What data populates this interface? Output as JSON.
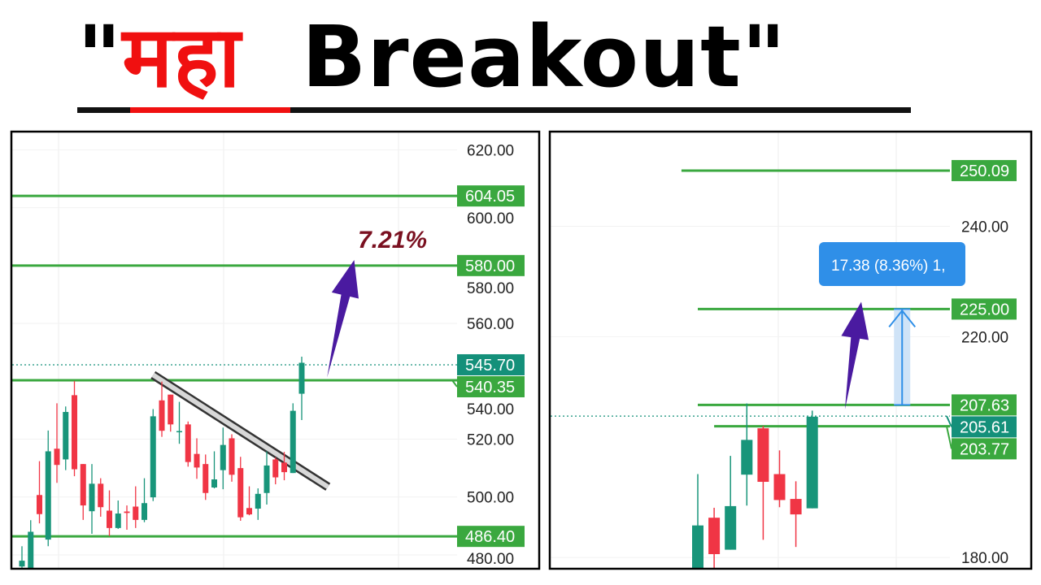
{
  "title": {
    "quote_open": "\"",
    "hindi": "महा",
    "english": "Breakout",
    "quote_close": "\""
  },
  "colors": {
    "up": "#18957a",
    "down": "#f03545",
    "level": "#3aa83f",
    "current": "#14907a",
    "arrow": "#4a1aa0",
    "measure": "#2f8fe8",
    "percent_text": "#7a1020",
    "hindi_text": "#f01010"
  },
  "chart_data": [
    {
      "type": "candlestick",
      "ylim": [
        475.5,
        626
      ],
      "y_ticks": [
        "620.00",
        "600.00",
        "580.00",
        "560.00",
        "540.00",
        "520.00",
        "500.00",
        "480.00"
      ],
      "candles": [
        [
          476,
          483,
          475,
          478
        ],
        [
          475.5,
          492,
          475.5,
          488
        ],
        [
          500.7,
          512.4,
          490.9,
          494.1
        ],
        [
          485.3,
          523,
          483,
          515.8
        ],
        [
          516.7,
          532.4,
          504.9,
          511.1
        ],
        [
          513,
          531.3,
          509.3,
          529.4
        ],
        [
          535.2,
          540.1,
          507.2,
          509.6
        ],
        [
          511.4,
          511.4,
          492.1,
          497.1
        ],
        [
          495.1,
          511.4,
          487.3,
          504.6
        ],
        [
          504.6,
          506.5,
          493.2,
          496.5
        ],
        [
          495.3,
          502.3,
          486.5,
          489.3
        ],
        [
          489.3,
          498.8,
          489,
          494.3
        ],
        [
          495,
          497.1,
          488.7,
          494.5
        ],
        [
          496.7,
          503.7,
          489.3,
          492.1
        ],
        [
          492.1,
          506.5,
          491.3,
          497.9
        ],
        [
          499.9,
          530.4,
          498.6,
          527.9
        ],
        [
          533.4,
          539.9,
          520.8,
          522.9
        ],
        [
          535.4,
          535.4,
          522.6,
          525.1
        ],
        [
          522.5,
          532.9,
          518.4,
          522.8
        ],
        [
          525.1,
          526.1,
          510.5,
          512.1
        ],
        [
          514.9,
          520.3,
          506.3,
          510.2
        ],
        [
          511.4,
          514.7,
          499,
          501.4
        ],
        [
          503.3,
          515.8,
          503,
          506.1
        ],
        [
          509.3,
          524,
          502.7,
          518
        ],
        [
          520.3,
          521.7,
          505.3,
          507.7
        ],
        [
          510,
          513.9,
          491.8,
          493
        ],
        [
          496.2,
          503.7,
          493.7,
          494
        ],
        [
          496,
          503,
          492.1,
          501.1
        ],
        [
          501.4,
          515.8,
          497.4,
          510.9
        ],
        [
          513,
          513.7,
          504.4,
          506.8
        ],
        [
          511.9,
          515.6,
          505.8,
          508.6
        ],
        [
          508.3,
          532.4,
          508.3,
          529.8
        ],
        [
          535.7,
          548.5,
          526.6,
          546.4
        ]
      ],
      "candle_format": "open,high,low,close",
      "levels": [
        {
          "price": 604.05,
          "label": "604.05"
        },
        {
          "price": 580.0,
          "label": "580.00"
        },
        {
          "price": 540.35,
          "label": "540.35"
        },
        {
          "price": 486.4,
          "label": "486.40"
        }
      ],
      "current_price": {
        "price": 545.7,
        "label": "545.70"
      },
      "trendline": [
        [
          15,
          542.2
        ],
        [
          35,
          503.5
        ]
      ],
      "arrow": {
        "from": [
          34.9,
          541.3
        ],
        "to": [
          38,
          581.9
        ]
      },
      "annotation": "7.21%"
    },
    {
      "type": "candlestick",
      "ylim": [
        178.1,
        257
      ],
      "y_ticks": [
        "240.00",
        "220.00",
        "180.00"
      ],
      "candles": [
        [
          177.5,
          195.1,
          177,
          185.8
        ],
        [
          187.2,
          189,
          177.5,
          180.6
        ],
        [
          181.4,
          198.4,
          181.4,
          189.3
        ],
        [
          195,
          207.9,
          189.4,
          201.3
        ],
        [
          203.4,
          203.8,
          183.2,
          193.7
        ],
        [
          195.1,
          199.4,
          189.1,
          190.4
        ],
        [
          190.6,
          193.8,
          181.9,
          187.8
        ],
        [
          188.9,
          206.6,
          188.9,
          205.5
        ]
      ],
      "candle_format": "open,high,low,close",
      "levels": [
        {
          "price": 250.09,
          "label": "250.09",
          "from_index": -1
        },
        {
          "price": 225.0,
          "label": "225.00",
          "from_index": 0
        },
        {
          "price": 207.63,
          "label": "207.63",
          "from_index": 0
        },
        {
          "price": 203.77,
          "label": "203.77",
          "from_index": 1
        }
      ],
      "current_price": {
        "price": 205.61,
        "label": "205.61"
      },
      "measure": {
        "index": 12.5,
        "from": 207.63,
        "to": 225.0,
        "label": "17.38 (8.36%) 1,"
      },
      "arrow": {
        "from": [
          9,
          206.8
        ],
        "to": [
          10,
          226.3
        ]
      }
    }
  ]
}
